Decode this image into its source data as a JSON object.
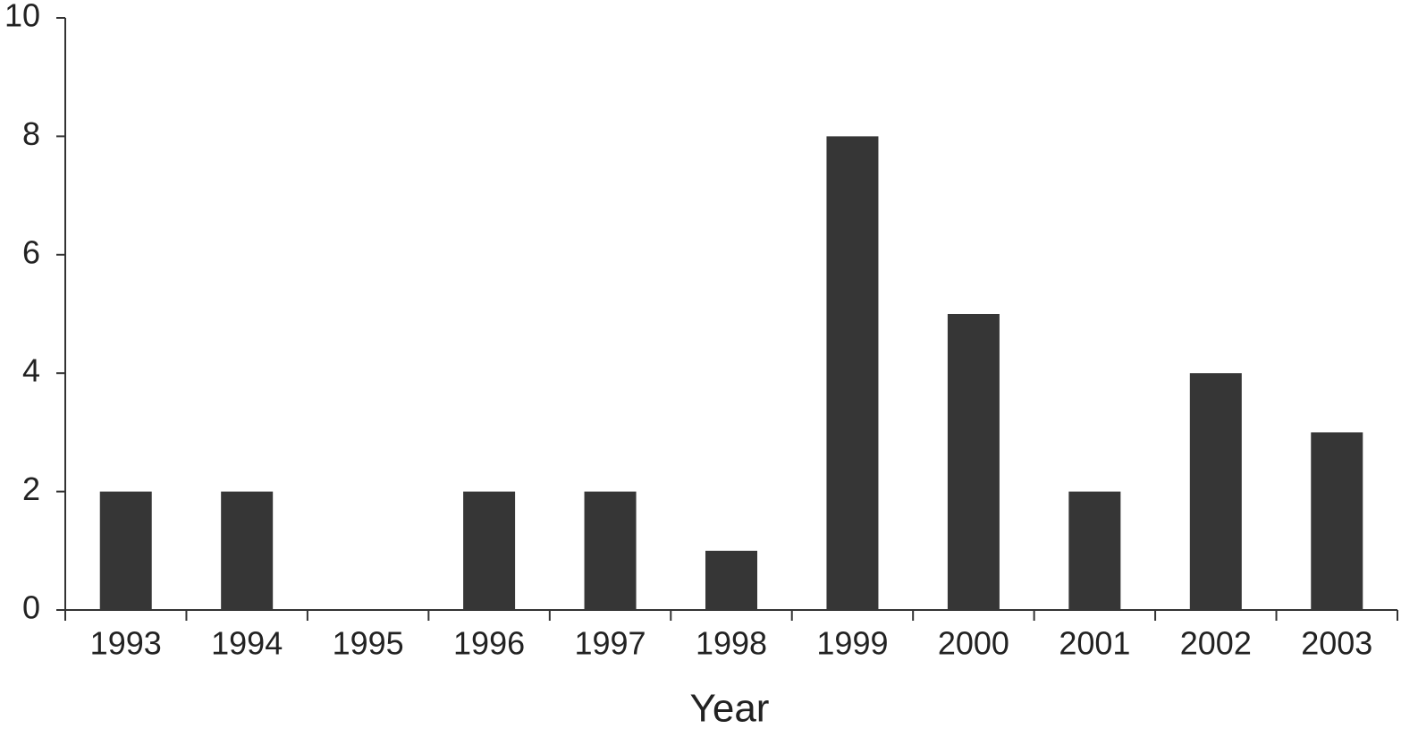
{
  "chart_data": {
    "type": "bar",
    "x_label": "Year",
    "categories": [
      "1993",
      "1994",
      "1995",
      "1996",
      "1997",
      "1998",
      "1999",
      "2000",
      "2001",
      "2002",
      "2003"
    ],
    "values": [
      2,
      2,
      0,
      2,
      2,
      1,
      8,
      5,
      2,
      4,
      3
    ],
    "color": "#363636",
    "ylim": [
      0,
      10
    ],
    "yticks": [
      0,
      2,
      4,
      6,
      8,
      10
    ],
    "grid": false
  }
}
